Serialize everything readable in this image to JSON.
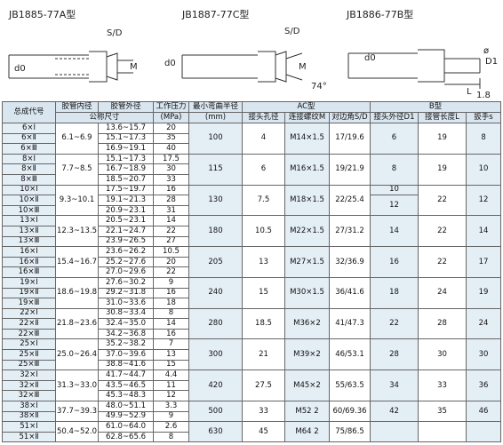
{
  "diagrams": [
    {
      "title": "JB1885-77A型",
      "labels": [
        "S/D",
        "d0",
        "M"
      ]
    },
    {
      "title": "JB1887-77C型",
      "labels": [
        "S/D",
        "d0",
        "M",
        "74°"
      ]
    },
    {
      "title": "JB1886-77B型",
      "labels": [
        "d0",
        "ø",
        "D1",
        "L",
        "1.8"
      ]
    }
  ],
  "header": {
    "row1": [
      "总成代号",
      "胶管内径",
      "胶管外径",
      "工作压力",
      "最小弯曲半径",
      "AC型",
      "B型"
    ],
    "row2": [
      "公称尺寸",
      "(MPa)",
      "(mm)",
      "接头孔径",
      "连接螺纹M",
      "对边角S/D",
      "接头外径D1",
      "接管长度L",
      "扳手s"
    ]
  },
  "groups": [
    {
      "codes": [
        "6×Ⅰ",
        "6×Ⅱ",
        "6×Ⅲ"
      ],
      "inner": "6.1~6.9",
      "outer": [
        "13.6~15.7",
        "15.1~17.3",
        "16.9~19.1"
      ],
      "pressure": [
        "20",
        "35",
        "40"
      ],
      "radius": "100",
      "hole": "4",
      "thread": "M14×1.5",
      "sd": "17/19.6",
      "d1": "6",
      "l": "19",
      "s": "8"
    },
    {
      "codes": [
        "8×Ⅰ",
        "8×Ⅱ",
        "8×Ⅲ"
      ],
      "inner": "7.7~8.5",
      "outer": [
        "15.1~17.3",
        "16.7~18.9",
        "18.5~20.7"
      ],
      "pressure": [
        "17.5",
        "30",
        "33"
      ],
      "radius": "115",
      "hole": "6",
      "thread": "M16×1.5",
      "sd": "19/21.9",
      "d1": "8",
      "l": "19",
      "s": "10"
    },
    {
      "codes": [
        "10×Ⅰ",
        "10×Ⅱ",
        "10×Ⅲ"
      ],
      "inner": "9.3~10.1",
      "outer": [
        "17.5~19.7",
        "19.1~21.3",
        "20.9~23.1"
      ],
      "pressure": [
        "16",
        "28",
        "31"
      ],
      "radius": "130",
      "hole": "7.5",
      "thread": "M18×1.5",
      "sd": "22/25.4",
      "d1": [
        "10",
        "12"
      ],
      "l": "22",
      "s": "12"
    },
    {
      "codes": [
        "13×Ⅰ",
        "13×Ⅱ",
        "13×Ⅲ"
      ],
      "inner": "12.3~13.5",
      "outer": [
        "20.5~23.1",
        "22.1~24.7",
        "23.9~26.5"
      ],
      "pressure": [
        "14",
        "22",
        "27"
      ],
      "radius": "180",
      "hole": "10.5",
      "thread": "M22×1.5",
      "sd": "27/31.2",
      "d1": "14",
      "l": "22",
      "s": "14"
    },
    {
      "codes": [
        "16×Ⅰ",
        "16×Ⅱ",
        "16×Ⅲ"
      ],
      "inner": "15.4~16.7",
      "outer": [
        "23.6~26.2",
        "25.2~27.6",
        "27.0~29.6"
      ],
      "pressure": [
        "10.5",
        "20",
        "22"
      ],
      "radius": "205",
      "hole": "13",
      "thread": "M27×1.5",
      "sd": "32/36.9",
      "d1": "16",
      "l": "22",
      "s": "17"
    },
    {
      "codes": [
        "19×Ⅰ",
        "19×Ⅱ",
        "19×Ⅲ"
      ],
      "inner": "18.6~19.8",
      "outer": [
        "27.6~30.2",
        "29.2~31.8",
        "31.0~33.6"
      ],
      "pressure": [
        "9",
        "16",
        "18"
      ],
      "radius": "240",
      "hole": "15",
      "thread": "M30×1.5",
      "sd": "36/41.6",
      "d1": "18",
      "l": "24",
      "s": "19"
    },
    {
      "codes": [
        "22×Ⅰ",
        "22×Ⅱ",
        "22×Ⅲ"
      ],
      "inner": "21.8~23.6",
      "outer": [
        "30.8~33.4",
        "32.4~35.0",
        "34.2~36.8"
      ],
      "pressure": [
        "8",
        "14",
        "16"
      ],
      "radius": "280",
      "hole": "18.5",
      "thread": "M36×2",
      "sd": "41/47.3",
      "d1": "22",
      "l": "28",
      "s": "24"
    },
    {
      "codes": [
        "25×Ⅰ",
        "25×Ⅱ",
        "25×Ⅲ"
      ],
      "inner": "25.0~26.4",
      "outer": [
        "35.2~38.2",
        "37.0~39.6",
        "38.8~41.6"
      ],
      "pressure": [
        "7",
        "13",
        "15"
      ],
      "radius": "300",
      "hole": "21",
      "thread": "M39×2",
      "sd": "46/53.1",
      "d1": "28",
      "l": "30",
      "s": "30"
    },
    {
      "codes": [
        "32×Ⅰ",
        "32×Ⅱ",
        "32×Ⅲ"
      ],
      "inner": "31.3~33.0",
      "outer": [
        "41.7~44.7",
        "43.5~46.5",
        "45.3~48.3"
      ],
      "pressure": [
        "4.4",
        "11",
        "12"
      ],
      "radius": "420",
      "hole": "27.5",
      "thread": "M45×2",
      "sd": "55/63.5",
      "d1": "34",
      "l": "33",
      "s": "36"
    },
    {
      "codes": [
        "38×Ⅰ",
        "38×Ⅱ"
      ],
      "inner": "37.7~39.3",
      "outer": [
        "48.0~51.1",
        "49.9~52.9"
      ],
      "pressure": [
        "3.3",
        "9"
      ],
      "radius": "500",
      "hole": "33",
      "thread": "M52 2",
      "sd": "60/69.36",
      "d1": "42",
      "l": "35",
      "s": "46"
    },
    {
      "codes": [
        "51×Ⅰ",
        "51×Ⅱ"
      ],
      "inner": "50.4~52.0",
      "outer": [
        "61.0~64.0",
        "62.8~65.6"
      ],
      "pressure": [
        "2.6",
        "8"
      ],
      "radius": "630",
      "hole": "45",
      "thread": "M64 2",
      "sd": "75/86.5"
    }
  ]
}
